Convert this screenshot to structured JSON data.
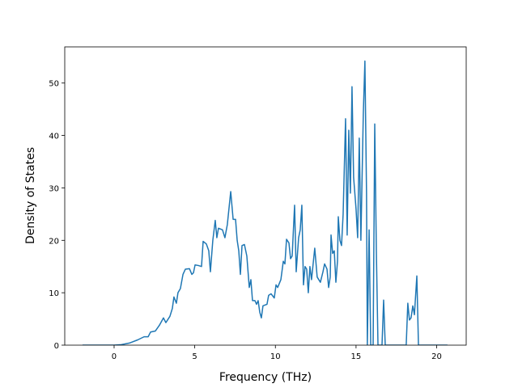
{
  "chart_data": {
    "type": "line",
    "x_label": "Frequency (THz)",
    "y_label": "Density of States",
    "xlim": [
      -3.06,
      21.83
    ],
    "ylim": [
      0,
      56.9
    ],
    "xticks": [
      0,
      5,
      10,
      15,
      20
    ],
    "yticks": [
      0,
      10,
      20,
      30,
      40,
      50
    ],
    "series": [
      {
        "color": "#1f77b4",
        "x": [
          -1.96,
          0,
          0.45,
          0.95,
          1.46,
          1.86,
          2.11,
          2.26,
          2.56,
          2.81,
          3.06,
          3.21,
          3.46,
          3.61,
          3.71,
          3.86,
          3.96,
          4.11,
          4.27,
          4.42,
          4.67,
          4.82,
          4.92,
          5.02,
          5.22,
          5.42,
          5.52,
          5.72,
          5.87,
          5.97,
          6.12,
          6.27,
          6.37,
          6.47,
          6.72,
          6.87,
          7.02,
          7.23,
          7.38,
          7.53,
          7.63,
          7.73,
          7.83,
          7.93,
          8.08,
          8.23,
          8.38,
          8.48,
          8.58,
          8.73,
          8.83,
          8.93,
          9.03,
          9.13,
          9.23,
          9.48,
          9.58,
          9.73,
          9.93,
          10.04,
          10.14,
          10.34,
          10.49,
          10.59,
          10.69,
          10.84,
          10.94,
          11.04,
          11.19,
          11.29,
          11.44,
          11.54,
          11.64,
          11.74,
          11.84,
          11.94,
          12.04,
          12.14,
          12.24,
          12.44,
          12.59,
          12.79,
          12.95,
          13.05,
          13.2,
          13.3,
          13.4,
          13.45,
          13.55,
          13.65,
          13.75,
          13.85,
          13.9,
          14.0,
          14.1,
          14.2,
          14.35,
          14.45,
          14.55,
          14.65,
          14.75,
          14.85,
          15.0,
          15.1,
          15.2,
          15.3,
          15.45,
          15.55,
          15.65,
          15.7,
          15.81,
          15.91,
          16.06,
          16.16,
          16.26,
          16.36,
          16.61,
          16.71,
          16.81,
          18.11,
          18.21,
          18.31,
          18.41,
          18.52,
          18.62,
          18.77,
          18.87,
          20.67
        ],
        "values": [
          0,
          0,
          0.1,
          0.4,
          1,
          1.6,
          1.6,
          2.5,
          2.7,
          3.8,
          5.2,
          4.3,
          5.5,
          7,
          9.2,
          8,
          10,
          10.8,
          13.5,
          14.5,
          14.6,
          13.5,
          13.8,
          15.3,
          15.2,
          15,
          19.8,
          19.3,
          18,
          14,
          20,
          23.8,
          20.5,
          22.3,
          22,
          20.5,
          23,
          29.3,
          24,
          24,
          20,
          18,
          13.5,
          19,
          19.2,
          17,
          11,
          12.5,
          8.5,
          8.5,
          7.8,
          8.5,
          6.3,
          5.2,
          7.5,
          7.8,
          9.5,
          9.8,
          9,
          11.5,
          11,
          12.5,
          16,
          15.5,
          20.2,
          19.5,
          16.5,
          17,
          26.7,
          14,
          20.5,
          22,
          26.7,
          11.5,
          15,
          14.5,
          10,
          15,
          12.5,
          18.5,
          13,
          12,
          14,
          15.5,
          14.5,
          11,
          13,
          21,
          17.5,
          18,
          12,
          16,
          24.5,
          20,
          19,
          25,
          43.2,
          21,
          41,
          29,
          49.3,
          32,
          26,
          20.5,
          39.5,
          20,
          44,
          54.2,
          29,
          0,
          22,
          0,
          0,
          42.2,
          18,
          0,
          0,
          8.6,
          0,
          0,
          8,
          4.8,
          5.2,
          7.5,
          5.8,
          13.2,
          0,
          0
        ]
      }
    ]
  }
}
